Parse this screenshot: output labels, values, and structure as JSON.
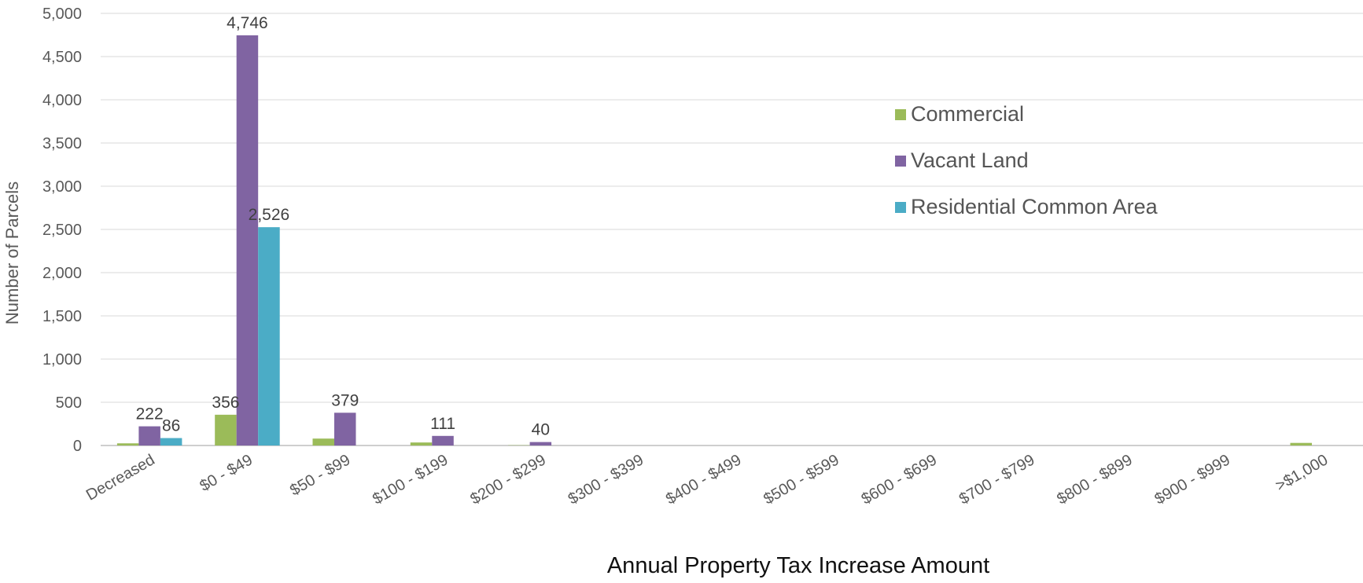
{
  "chart_data": {
    "type": "bar",
    "xlabel": "Annual Property Tax Increase Amount",
    "ylabel": "Number of Parcels",
    "ylim": [
      0,
      5000
    ],
    "yticks": [
      "0",
      "500",
      "1,000",
      "1,500",
      "2,000",
      "2,500",
      "3,000",
      "3,500",
      "4,000",
      "4,500",
      "5,000"
    ],
    "categories": [
      "Decreased",
      "$0 - $49",
      "$50 - $99",
      "$100 - $199",
      "$200 - $299",
      "$300 - $399",
      "$400 - $499",
      "$500 - $599",
      "$600 - $699",
      "$700 - $799",
      "$800 - $899",
      "$900 - $999",
      ">$1,000"
    ],
    "series": [
      {
        "name": "Commercial",
        "color": "#9bbb59",
        "values": [
          25,
          356,
          80,
          35,
          3,
          0,
          0,
          0,
          0,
          0,
          0,
          0,
          30
        ],
        "labels": [
          "",
          "356",
          "",
          "",
          "",
          "",
          "",
          "",
          "",
          "",
          "",
          "",
          ""
        ]
      },
      {
        "name": "Vacant Land",
        "color": "#8064a2",
        "values": [
          222,
          4746,
          379,
          111,
          40,
          0,
          0,
          0,
          0,
          0,
          0,
          0,
          0
        ],
        "labels": [
          "222",
          "4,746",
          "379",
          "111",
          "40",
          "",
          "",
          "",
          "",
          "",
          "",
          "",
          ""
        ]
      },
      {
        "name": "Residential Common Area",
        "color": "#4bacc6",
        "values": [
          86,
          2526,
          0,
          0,
          0,
          0,
          0,
          0,
          0,
          0,
          0,
          0,
          0
        ],
        "labels": [
          "86",
          "2,526",
          "",
          "",
          "",
          "",
          "",
          "",
          "",
          "",
          "",
          "",
          ""
        ]
      }
    ],
    "grid": true,
    "legend_position": "right"
  }
}
